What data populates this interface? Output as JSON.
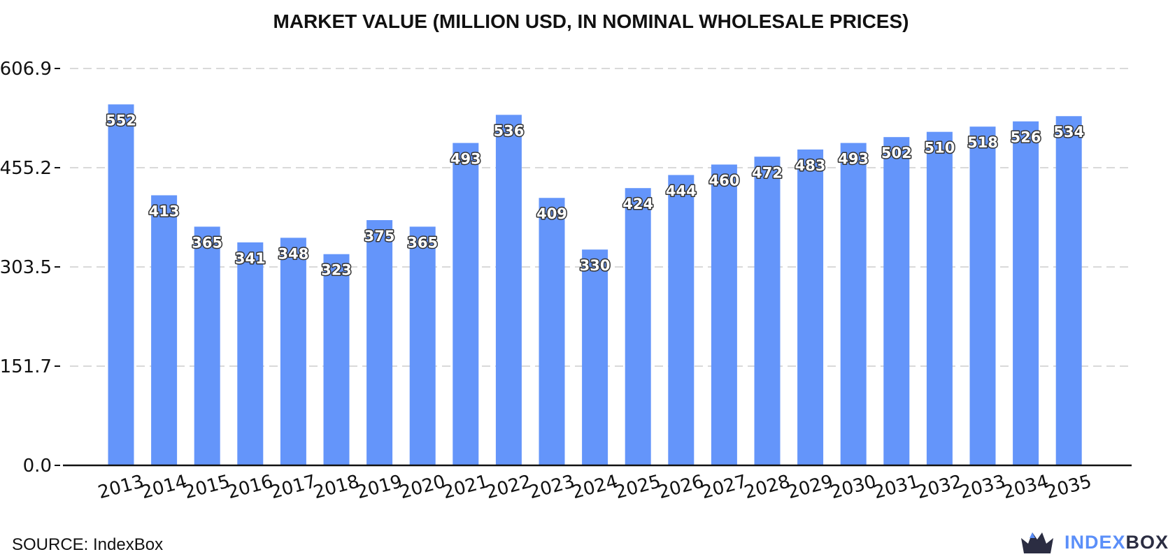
{
  "source_label": "SOURCE: IndexBox",
  "brand": {
    "name_part1": "INDEX",
    "name_part2": "BOX",
    "color_part1": "#5b8ff9",
    "color_part2": "#2b2d42",
    "icon": "indexbox-crown-icon"
  },
  "chart_data": {
    "type": "bar",
    "title": "MARKET VALUE (MILLION USD, IN NOMINAL WHOLESALE PRICES)",
    "xlabel": "",
    "ylabel": "",
    "categories": [
      "2013",
      "2014",
      "2015",
      "2016",
      "2017",
      "2018",
      "2019",
      "2020",
      "2021",
      "2022",
      "2023",
      "2024",
      "2025",
      "2026",
      "2027",
      "2028",
      "2029",
      "2030",
      "2031",
      "2032",
      "2033",
      "2034",
      "2035"
    ],
    "values": [
      552,
      413,
      365,
      341,
      348,
      323,
      375,
      365,
      493,
      536,
      409,
      330,
      424,
      444,
      460,
      472,
      483,
      493,
      502,
      510,
      518,
      526,
      534
    ],
    "ylim": [
      0,
      606.9
    ],
    "yticks": [
      0.0,
      151.7,
      303.5,
      455.2,
      606.9
    ],
    "ytick_labels": [
      "0.0",
      "151.7",
      "303.5",
      "455.2",
      "606.9"
    ],
    "bar_color": "#6495fa",
    "grid": true
  }
}
